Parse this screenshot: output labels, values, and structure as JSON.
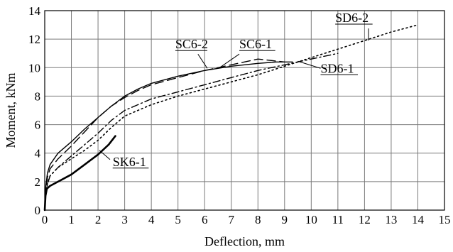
{
  "chart_data": {
    "type": "line",
    "title": "",
    "xlabel": "Deflection, mm",
    "ylabel": "Moment, kNm",
    "xlim": [
      0,
      15
    ],
    "ylim": [
      0,
      14
    ],
    "xticks": [
      0,
      1,
      2,
      3,
      4,
      5,
      6,
      7,
      8,
      9,
      10,
      11,
      12,
      13,
      14,
      15
    ],
    "yticks": [
      0,
      2,
      4,
      6,
      8,
      10,
      12,
      14
    ],
    "grid": true,
    "legend": "none",
    "series": [
      {
        "name": "SK6-1",
        "style": "solid",
        "stroke_width": 2.6,
        "x": [
          0,
          0.03,
          0.08,
          0.2,
          0.5,
          1.0,
          1.5,
          2.0,
          2.4,
          2.65
        ],
        "y": [
          0,
          1.0,
          1.5,
          1.7,
          2.0,
          2.5,
          3.2,
          3.9,
          4.6,
          5.2
        ]
      },
      {
        "name": "SC6-1",
        "style": "solid",
        "stroke_width": 1.4,
        "x": [
          0,
          0.03,
          0.1,
          0.2,
          0.5,
          1.0,
          1.5,
          2.0,
          2.5,
          3.0,
          3.5,
          4.0,
          5.0,
          6.0,
          7.0,
          8.0,
          8.7,
          9.3
        ],
        "y": [
          0,
          1.5,
          2.6,
          3.2,
          4.0,
          4.8,
          5.7,
          6.5,
          7.3,
          8.0,
          8.5,
          8.9,
          9.4,
          9.8,
          10.1,
          10.3,
          10.4,
          10.4
        ]
      },
      {
        "name": "SC6-2",
        "style": "dash",
        "stroke_width": 1.4,
        "x": [
          0,
          0.03,
          0.1,
          0.2,
          0.5,
          1.0,
          1.5,
          2.0,
          2.5,
          3.0,
          3.5,
          4.0,
          5.0,
          6.0,
          7.0,
          8.0,
          9.0
        ],
        "y": [
          0,
          1.3,
          2.3,
          2.9,
          3.6,
          4.5,
          5.5,
          6.5,
          7.3,
          7.9,
          8.4,
          8.8,
          9.3,
          9.8,
          10.2,
          10.6,
          10.4
        ]
      },
      {
        "name": "SD6-1",
        "style": "dashdot",
        "stroke_width": 1.4,
        "x": [
          0,
          0.03,
          0.1,
          0.2,
          0.5,
          1.0,
          1.5,
          2.0,
          2.5,
          3.0,
          4.0,
          5.0,
          6.0,
          7.0,
          8.0,
          9.0,
          10.0,
          11.0
        ],
        "y": [
          0,
          1.0,
          1.8,
          2.4,
          3.0,
          3.8,
          4.6,
          5.4,
          6.3,
          7.0,
          7.8,
          8.3,
          8.8,
          9.3,
          9.8,
          10.2,
          10.6,
          11.0
        ]
      },
      {
        "name": "SD6-2",
        "style": "dot",
        "stroke_width": 1.6,
        "x": [
          0,
          0.03,
          0.1,
          0.2,
          0.5,
          1.0,
          1.5,
          2.0,
          2.5,
          3.0,
          4.0,
          5.0,
          6.0,
          7.0,
          8.0,
          9.0,
          10.0,
          11.0,
          12.0,
          13.0,
          14.0
        ],
        "y": [
          0,
          1.0,
          1.9,
          2.4,
          3.0,
          3.6,
          4.2,
          4.9,
          5.8,
          6.6,
          7.4,
          8.0,
          8.5,
          9.0,
          9.5,
          10.1,
          10.7,
          11.3,
          11.9,
          12.5,
          13.0
        ]
      }
    ],
    "labels": {
      "SK6-1": "SK6-1",
      "SC6-1": "SC6-1",
      "SC6-2": "SC6-2",
      "SD6-1": "SD6-1",
      "SD6-2": "SD6-2"
    }
  }
}
